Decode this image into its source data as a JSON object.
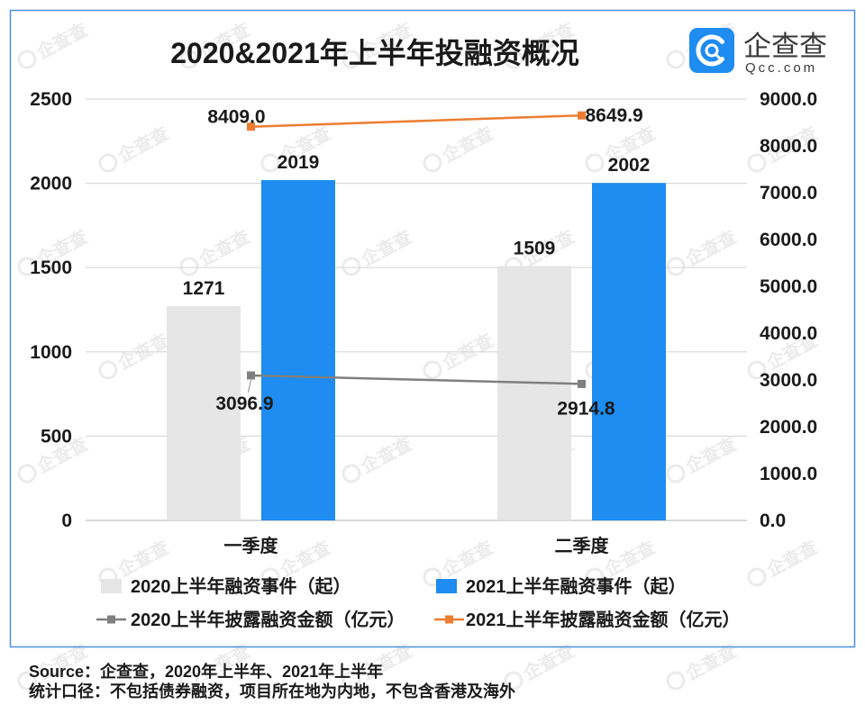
{
  "logo": {
    "name": "企查查",
    "domain": "Qcc.com",
    "icon": "qcc-magnifier-logo-icon",
    "color": "#1E8CF0"
  },
  "watermark": "企查查",
  "chart_data": {
    "type": "bar",
    "title": "2020&2021年上半年投融资概况",
    "categories": [
      "一季度",
      "二季度"
    ],
    "y_left": {
      "ylim": [
        0,
        2500
      ],
      "ticks": [
        "0",
        "500",
        "1000",
        "1500",
        "2000",
        "2500"
      ]
    },
    "y_right": {
      "ylim": [
        0,
        9000
      ],
      "ticks": [
        "0.0",
        "1000.0",
        "2000.0",
        "3000.0",
        "4000.0",
        "5000.0",
        "6000.0",
        "7000.0",
        "8000.0",
        "9000.0"
      ]
    },
    "series": [
      {
        "name": "2020上半年融资事件（起）",
        "type": "bar",
        "axis": "left",
        "values": [
          1271,
          1509
        ],
        "labels": [
          "1271",
          "1509"
        ],
        "color": "#E7E6E6"
      },
      {
        "name": "2021上半年融资事件（起）",
        "type": "bar",
        "axis": "left",
        "values": [
          2019,
          2002
        ],
        "labels": [
          "2019",
          "2002"
        ],
        "color": "#1E8CF0"
      },
      {
        "name": "2020上半年披露融资金额（亿元）",
        "type": "line",
        "axis": "right",
        "marker": "square",
        "values": [
          3096.9,
          2914.8
        ],
        "labels": [
          "3096.9",
          "2914.8"
        ],
        "color": "#7F7F7F"
      },
      {
        "name": "2021上半年披露融资金额（亿元）",
        "type": "line",
        "axis": "right",
        "marker": "square",
        "values": [
          8409.0,
          8649.9
        ],
        "labels": [
          "8409.0",
          "8649.9"
        ],
        "color": "#ED7D31"
      }
    ],
    "grid": true,
    "legend": "bottom"
  },
  "source": {
    "line1": "Source：企查查，2020年上半年、2021年上半年",
    "line2": "统计口径：不包括债券融资，项目所在地为内地，不包含香港及海外"
  },
  "colors": {
    "frame": "#4A90E2",
    "grid": "#D9D9D9",
    "axis": "#BFBFBF",
    "watermark": "#EBEBEB"
  }
}
